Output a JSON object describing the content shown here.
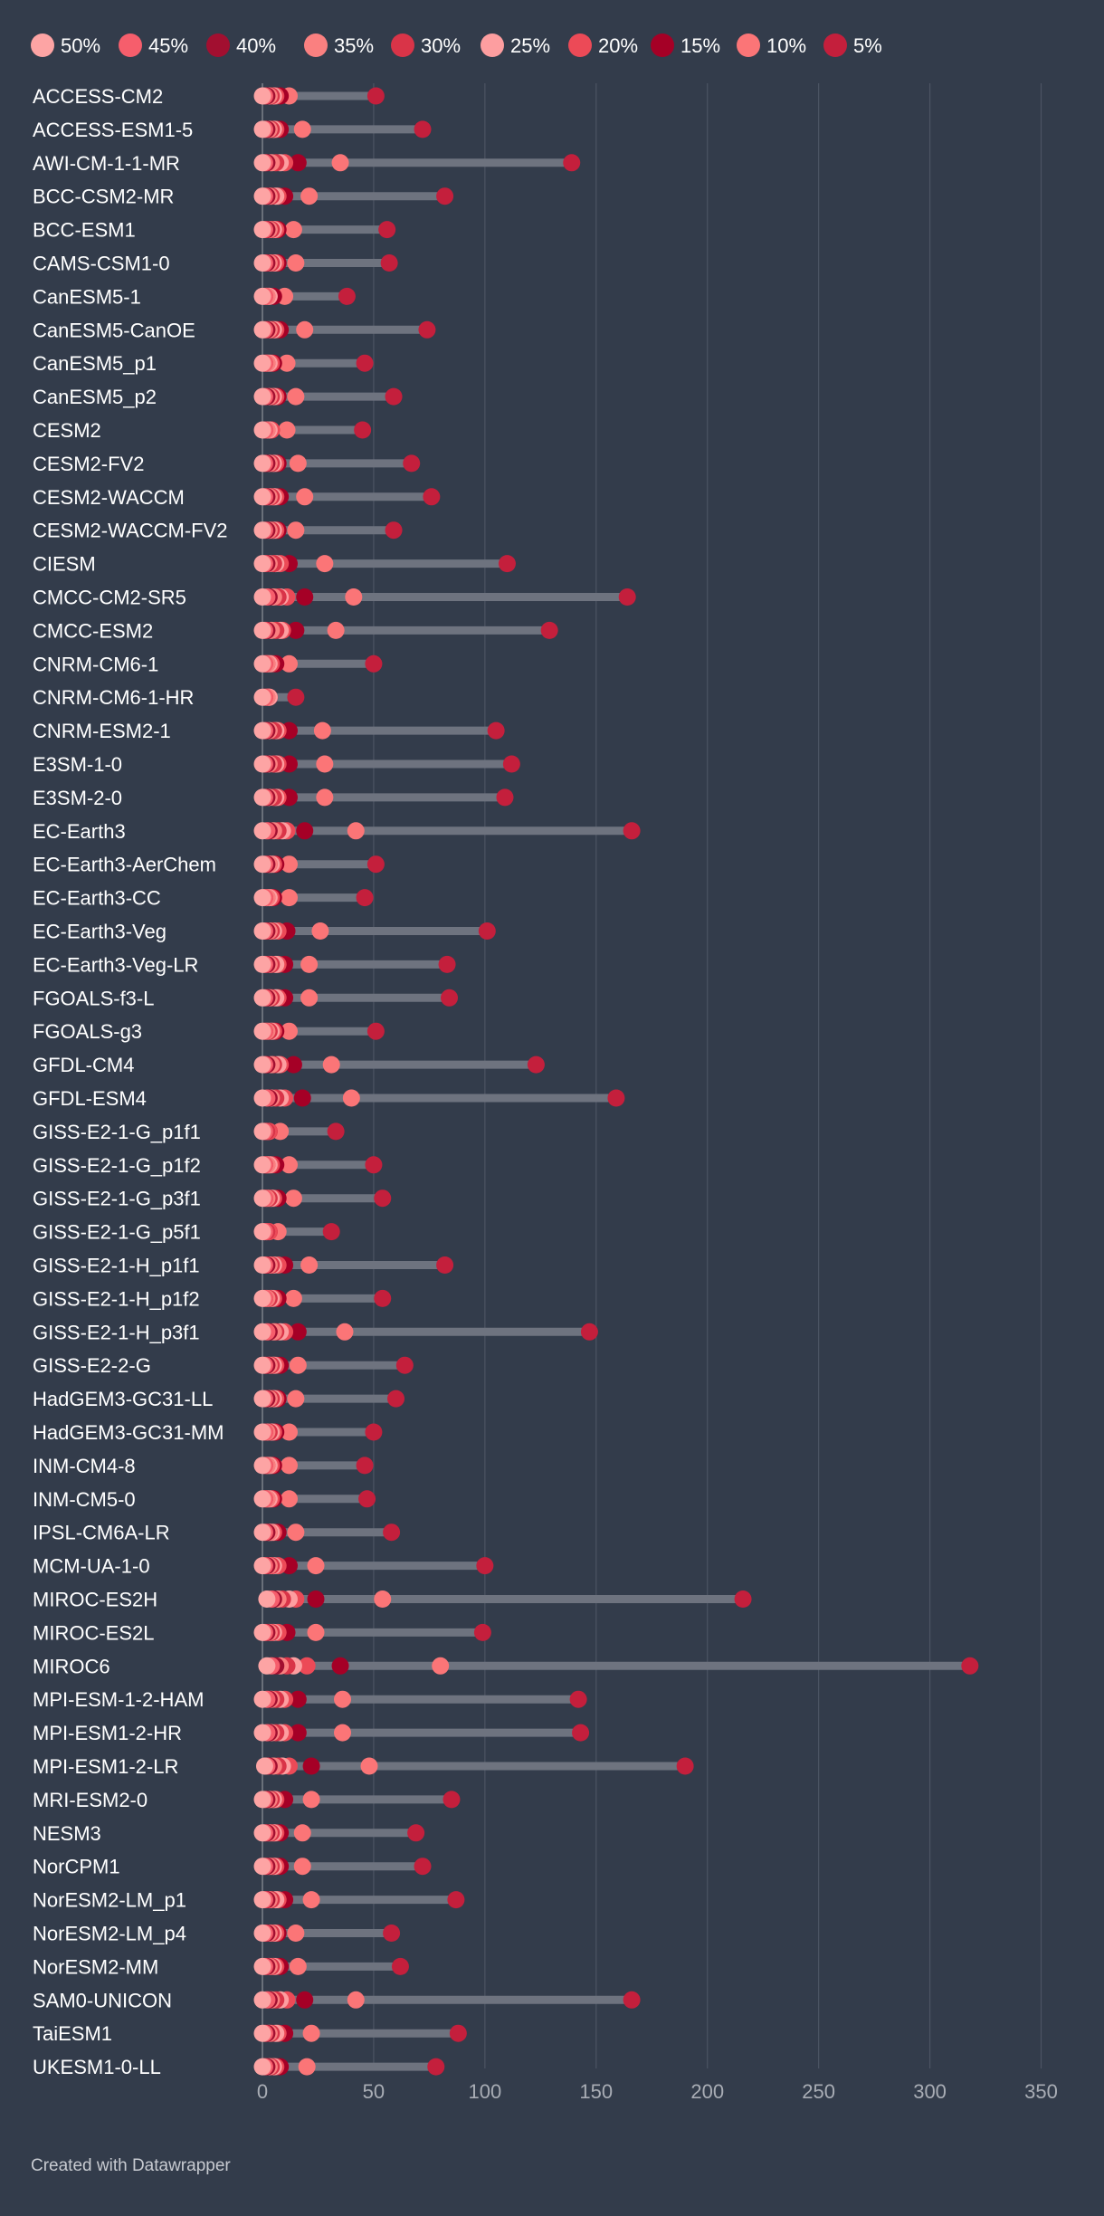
{
  "chart_data": {
    "type": "range-dot",
    "legend": [
      "50%",
      "45%",
      "40%",
      "35%",
      "30%",
      "25%",
      "20%",
      "15%",
      "10%",
      "5%"
    ],
    "series_colors": [
      "#fda4a4",
      "#f65e6c",
      "#a20f30",
      "#fa8080",
      "#d93448",
      "#fd9ea0",
      "#ec4a57",
      "#a50026",
      "#fb7577",
      "#c41f3c"
    ],
    "bar_color": "#6e737f",
    "xlim": [
      0,
      350
    ],
    "xticks": [
      0,
      50,
      100,
      150,
      200,
      250,
      300,
      350
    ],
    "grid": true,
    "legend_position": "top",
    "rows": [
      {
        "name": "ACCESS-CM2",
        "values": [
          0,
          1,
          2,
          3,
          4,
          5,
          6,
          8,
          12,
          51
        ]
      },
      {
        "name": "ACCESS-ESM1-5",
        "values": [
          0,
          1,
          2,
          3,
          4,
          5,
          6,
          8,
          18,
          72
        ]
      },
      {
        "name": "AWI-CM-1-1-MR",
        "values": [
          0,
          1,
          2,
          4,
          6,
          8,
          10,
          16,
          35,
          139
        ]
      },
      {
        "name": "BCC-CSM2-MR",
        "values": [
          0,
          1,
          2,
          3,
          4,
          6,
          7,
          10,
          21,
          82
        ]
      },
      {
        "name": "BCC-ESM1",
        "values": [
          0,
          1,
          2,
          3,
          4,
          5,
          6,
          7,
          14,
          56
        ]
      },
      {
        "name": "CAMS-CSM1-0",
        "values": [
          0,
          1,
          2,
          3,
          4,
          5,
          6,
          7,
          15,
          57
        ]
      },
      {
        "name": "CanESM5-1",
        "values": [
          0,
          1,
          1,
          2,
          2,
          3,
          3,
          5,
          10,
          38
        ]
      },
      {
        "name": "CanESM5-CanOE",
        "values": [
          0,
          1,
          2,
          3,
          4,
          5,
          6,
          8,
          19,
          74
        ]
      },
      {
        "name": "CanESM5_p1",
        "values": [
          0,
          1,
          1,
          2,
          2,
          3,
          4,
          5,
          11,
          46
        ]
      },
      {
        "name": "CanESM5_p2",
        "values": [
          0,
          1,
          2,
          3,
          4,
          5,
          6,
          7,
          15,
          59
        ]
      },
      {
        "name": "CESM2",
        "values": [
          0,
          1,
          1,
          2,
          2,
          3,
          4,
          4,
          11,
          45
        ]
      },
      {
        "name": "CESM2-FV2",
        "values": [
          0,
          1,
          2,
          3,
          4,
          5,
          6,
          7,
          16,
          67
        ]
      },
      {
        "name": "CESM2-WACCM",
        "values": [
          0,
          1,
          2,
          3,
          4,
          5,
          6,
          8,
          19,
          76
        ]
      },
      {
        "name": "CESM2-WACCM-FV2",
        "values": [
          0,
          1,
          2,
          3,
          4,
          5,
          6,
          7,
          15,
          59
        ]
      },
      {
        "name": "CIESM",
        "values": [
          0,
          1,
          2,
          3,
          5,
          6,
          8,
          12,
          28,
          110
        ]
      },
      {
        "name": "CMCC-CM2-SR5",
        "values": [
          0,
          2,
          3,
          5,
          7,
          8,
          11,
          19,
          41,
          164
        ]
      },
      {
        "name": "CMCC-ESM2",
        "values": [
          0,
          1,
          2,
          4,
          6,
          8,
          9,
          15,
          33,
          129
        ]
      },
      {
        "name": "CNRM-CM6-1",
        "values": [
          0,
          1,
          1,
          2,
          2,
          3,
          4,
          6,
          12,
          50
        ]
      },
      {
        "name": "CNRM-CM6-1-HR",
        "values": [
          0,
          1,
          1,
          2,
          2,
          3,
          3,
          3,
          3,
          15
        ]
      },
      {
        "name": "CNRM-ESM2-1",
        "values": [
          0,
          1,
          2,
          3,
          5,
          6,
          7,
          12,
          27,
          105
        ]
      },
      {
        "name": "E3SM-1-0",
        "values": [
          0,
          1,
          2,
          3,
          5,
          6,
          7,
          12,
          28,
          112
        ]
      },
      {
        "name": "E3SM-2-0",
        "values": [
          0,
          1,
          2,
          3,
          5,
          6,
          7,
          12,
          28,
          109
        ]
      },
      {
        "name": "EC-Earth3",
        "values": [
          0,
          2,
          3,
          5,
          7,
          9,
          11,
          19,
          42,
          166
        ]
      },
      {
        "name": "EC-Earth3-AerChem",
        "values": [
          0,
          1,
          2,
          3,
          3,
          4,
          5,
          6,
          12,
          51
        ]
      },
      {
        "name": "EC-Earth3-CC",
        "values": [
          0,
          1,
          1,
          2,
          2,
          3,
          4,
          5,
          12,
          46
        ]
      },
      {
        "name": "EC-Earth3-Veg",
        "values": [
          0,
          1,
          2,
          3,
          4,
          5,
          7,
          11,
          26,
          101
        ]
      },
      {
        "name": "EC-Earth3-Veg-LR",
        "values": [
          0,
          1,
          2,
          3,
          4,
          6,
          7,
          10,
          21,
          83
        ]
      },
      {
        "name": "FGOALS-f3-L",
        "values": [
          0,
          1,
          2,
          3,
          4,
          6,
          7,
          10,
          21,
          84
        ]
      },
      {
        "name": "FGOALS-g3",
        "values": [
          0,
          1,
          1,
          2,
          3,
          4,
          5,
          6,
          12,
          51
        ]
      },
      {
        "name": "GFDL-CM4",
        "values": [
          0,
          1,
          2,
          4,
          5,
          7,
          8,
          14,
          31,
          123
        ]
      },
      {
        "name": "GFDL-ESM4",
        "values": [
          0,
          2,
          3,
          4,
          6,
          8,
          10,
          18,
          40,
          159
        ]
      },
      {
        "name": "GISS-E2-1-G_p1f1",
        "values": [
          0,
          1,
          1,
          1,
          2,
          2,
          3,
          3,
          8,
          33
        ]
      },
      {
        "name": "GISS-E2-1-G_p1f2",
        "values": [
          0,
          1,
          1,
          2,
          2,
          3,
          4,
          6,
          12,
          50
        ]
      },
      {
        "name": "GISS-E2-1-G_p3f1",
        "values": [
          0,
          1,
          1,
          2,
          3,
          4,
          5,
          7,
          14,
          54
        ]
      },
      {
        "name": "GISS-E2-1-G_p5f1",
        "values": [
          0,
          1,
          1,
          1,
          2,
          2,
          3,
          3,
          7,
          31
        ]
      },
      {
        "name": "GISS-E2-1-H_p1f1",
        "values": [
          0,
          1,
          2,
          3,
          4,
          5,
          7,
          10,
          21,
          82
        ]
      },
      {
        "name": "GISS-E2-1-H_p1f2",
        "values": [
          0,
          1,
          1,
          2,
          3,
          4,
          5,
          7,
          14,
          54
        ]
      },
      {
        "name": "GISS-E2-1-H_p3f1",
        "values": [
          0,
          2,
          3,
          5,
          6,
          8,
          10,
          16,
          37,
          147
        ]
      },
      {
        "name": "GISS-E2-2-G",
        "values": [
          0,
          1,
          2,
          3,
          4,
          5,
          6,
          8,
          16,
          64
        ]
      },
      {
        "name": "HadGEM3-GC31-LL",
        "values": [
          0,
          1,
          2,
          3,
          4,
          5,
          6,
          7,
          15,
          60
        ]
      },
      {
        "name": "HadGEM3-GC31-MM",
        "values": [
          0,
          1,
          1,
          2,
          3,
          4,
          5,
          6,
          12,
          50
        ]
      },
      {
        "name": "INM-CM4-8",
        "values": [
          0,
          1,
          1,
          2,
          2,
          3,
          4,
          5,
          12,
          46
        ]
      },
      {
        "name": "INM-CM5-0",
        "values": [
          0,
          1,
          1,
          2,
          2,
          3,
          4,
          5,
          12,
          47
        ]
      },
      {
        "name": "IPSL-CM6A-LR",
        "values": [
          0,
          1,
          2,
          3,
          3,
          4,
          5,
          7,
          15,
          58
        ]
      },
      {
        "name": "MCM-UA-1-0",
        "values": [
          0,
          1,
          2,
          3,
          4,
          5,
          7,
          12,
          24,
          100
        ]
      },
      {
        "name": "MIROC-ES2H",
        "values": [
          2,
          4,
          5,
          7,
          9,
          12,
          15,
          24,
          54,
          216
        ]
      },
      {
        "name": "MIROC-ES2L",
        "values": [
          0,
          1,
          2,
          3,
          4,
          5,
          7,
          11,
          24,
          99
        ]
      },
      {
        "name": "MIROC6",
        "values": [
          2,
          4,
          6,
          8,
          11,
          14,
          20,
          35,
          80,
          318
        ]
      },
      {
        "name": "MPI-ESM-1-2-HAM",
        "values": [
          0,
          2,
          3,
          4,
          6,
          8,
          10,
          16,
          36,
          142
        ]
      },
      {
        "name": "MPI-ESM1-2-HR",
        "values": [
          0,
          2,
          3,
          4,
          6,
          8,
          10,
          16,
          36,
          143
        ]
      },
      {
        "name": "MPI-ESM1-2-LR",
        "values": [
          1,
          2,
          3,
          5,
          7,
          9,
          12,
          22,
          48,
          190
        ]
      },
      {
        "name": "MRI-ESM2-0",
        "values": [
          0,
          1,
          2,
          3,
          4,
          5,
          6,
          10,
          22,
          85
        ]
      },
      {
        "name": "NESM3",
        "values": [
          0,
          1,
          2,
          3,
          4,
          5,
          6,
          8,
          18,
          69
        ]
      },
      {
        "name": "NorCPM1",
        "values": [
          0,
          1,
          2,
          3,
          4,
          5,
          6,
          8,
          18,
          72
        ]
      },
      {
        "name": "NorESM2-LM_p1",
        "values": [
          0,
          1,
          2,
          3,
          4,
          6,
          7,
          10,
          22,
          87
        ]
      },
      {
        "name": "NorESM2-LM_p4",
        "values": [
          0,
          1,
          2,
          3,
          4,
          5,
          6,
          7,
          15,
          58
        ]
      },
      {
        "name": "NorESM2-MM",
        "values": [
          0,
          1,
          2,
          3,
          4,
          5,
          6,
          8,
          16,
          62
        ]
      },
      {
        "name": "SAM0-UNICON",
        "values": [
          0,
          2,
          3,
          4,
          6,
          8,
          11,
          19,
          42,
          166
        ]
      },
      {
        "name": "TaiESM1",
        "values": [
          0,
          1,
          2,
          3,
          4,
          6,
          7,
          10,
          22,
          88
        ]
      },
      {
        "name": "UKESM1-0-LL",
        "values": [
          0,
          1,
          2,
          3,
          4,
          5,
          6,
          8,
          20,
          78
        ]
      }
    ]
  },
  "footer": {
    "credit": "Created with Datawrapper"
  }
}
